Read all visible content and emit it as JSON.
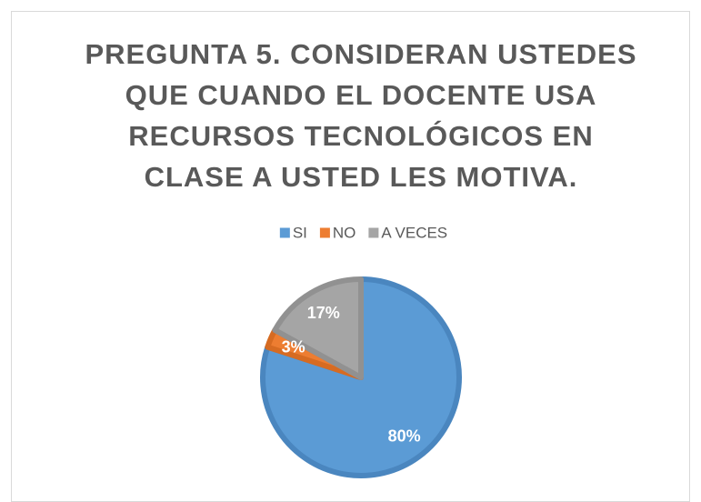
{
  "chart_data": {
    "type": "pie",
    "title": "PREGUNTA 5. CONSIDERAN USTEDES QUE CUANDO EL DOCENTE USA RECURSOS TECNOLÓGICOS EN CLASE A USTED LES MOTIVA.",
    "categories": [
      "SI",
      "NO",
      "A VECES"
    ],
    "values": [
      80,
      3,
      17
    ],
    "value_labels": [
      "80%",
      "3%",
      "17%"
    ],
    "colors": [
      "#5b9bd5",
      "#ed7d31",
      "#a5a5a5"
    ],
    "legend": "top"
  }
}
